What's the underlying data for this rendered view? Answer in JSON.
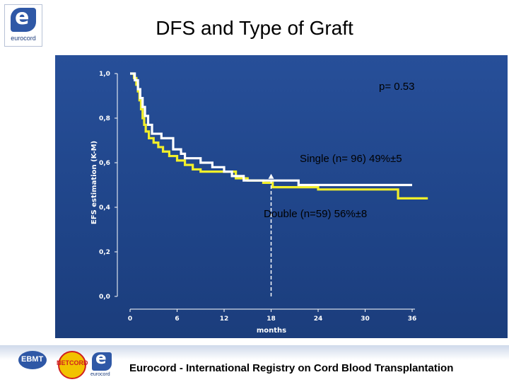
{
  "header": {
    "logo_text": "eurocord",
    "title": "DFS and Type of Graft"
  },
  "chart_data": {
    "type": "line",
    "step": true,
    "title": "DFS and Type of Graft",
    "xlabel": "months",
    "ylabel": "EFS estimation (K-M)",
    "xlim": [
      0,
      36
    ],
    "ylim": [
      0,
      1
    ],
    "x_ticks": [
      "0",
      "6",
      "12",
      "18",
      "24",
      "30",
      "36"
    ],
    "y_ticks": [
      "0,0",
      "0,2",
      "0,4",
      "0,6",
      "0,8",
      "1,0"
    ],
    "series": [
      {
        "name": "Single",
        "label": "Single (n= 96) 49%±5",
        "color": "#f2ef2a",
        "points": [
          [
            0,
            1.0
          ],
          [
            0.5,
            0.98
          ],
          [
            0.8,
            0.95
          ],
          [
            1.0,
            0.92
          ],
          [
            1.2,
            0.88
          ],
          [
            1.4,
            0.84
          ],
          [
            1.6,
            0.8
          ],
          [
            1.8,
            0.77
          ],
          [
            2.0,
            0.74
          ],
          [
            2.4,
            0.71
          ],
          [
            3.0,
            0.69
          ],
          [
            3.6,
            0.67
          ],
          [
            4.2,
            0.65
          ],
          [
            5.0,
            0.63
          ],
          [
            6.0,
            0.61
          ],
          [
            7.0,
            0.59
          ],
          [
            8.0,
            0.57
          ],
          [
            9.0,
            0.56
          ],
          [
            12.0,
            0.56
          ],
          [
            13.5,
            0.53
          ],
          [
            15.0,
            0.52
          ],
          [
            17.0,
            0.51
          ],
          [
            18.2,
            0.49
          ],
          [
            21.0,
            0.49
          ],
          [
            24.0,
            0.48
          ],
          [
            33.5,
            0.48
          ],
          [
            34.2,
            0.44
          ],
          [
            38.0,
            0.44
          ]
        ]
      },
      {
        "name": "Double",
        "label": "Double (n=59) 56%±8",
        "color": "#ffffff",
        "points": [
          [
            0,
            1.0
          ],
          [
            0.6,
            0.97
          ],
          [
            1.0,
            0.93
          ],
          [
            1.3,
            0.89
          ],
          [
            1.6,
            0.85
          ],
          [
            1.9,
            0.81
          ],
          [
            2.3,
            0.77
          ],
          [
            2.8,
            0.73
          ],
          [
            4.0,
            0.71
          ],
          [
            5.5,
            0.66
          ],
          [
            6.5,
            0.64
          ],
          [
            7.0,
            0.62
          ],
          [
            9.0,
            0.6
          ],
          [
            10.5,
            0.58
          ],
          [
            12.0,
            0.56
          ],
          [
            13.0,
            0.54
          ],
          [
            14.5,
            0.52
          ],
          [
            21.0,
            0.52
          ],
          [
            21.5,
            0.5
          ],
          [
            36.0,
            0.5
          ]
        ]
      }
    ],
    "annotations": [
      {
        "text": "p= 0.53"
      },
      {
        "text": "Single (n= 96) 49%±5"
      },
      {
        "text": "Double (n=59) 56%±8"
      }
    ],
    "reference_line": {
      "x": 18,
      "y_from": 0,
      "y_to": 0.55,
      "style": "dashed-arrow"
    }
  },
  "footer": {
    "text": "Eurocord - International Registry on Cord Blood Transplantation",
    "logos": [
      "EBMT",
      "NETCORD",
      "eurocord"
    ]
  }
}
